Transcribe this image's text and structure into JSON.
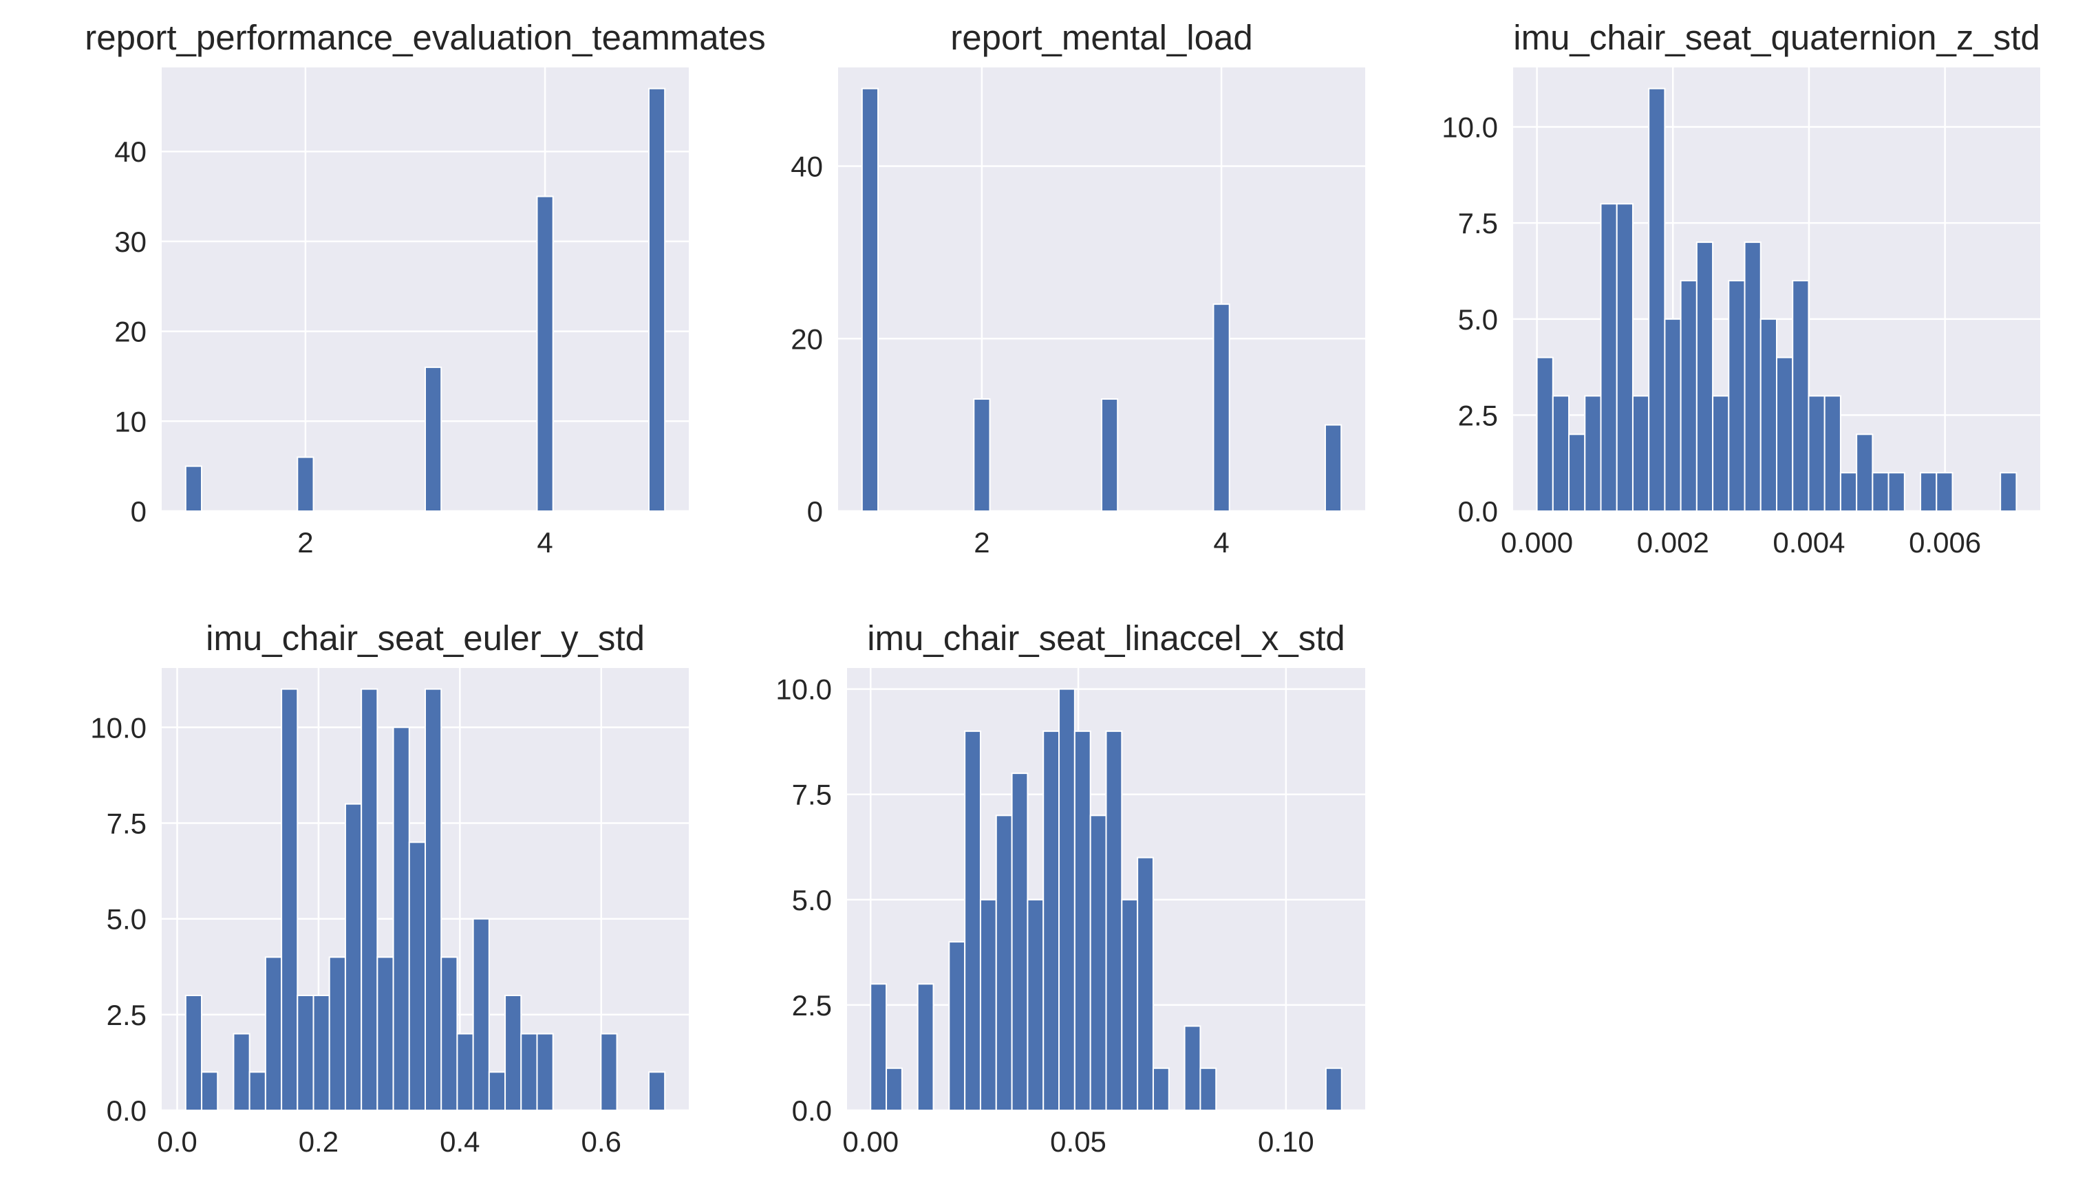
{
  "chart_data": [
    {
      "type": "histogram",
      "title": "report_performance_evaluation_teammates",
      "color": "#4c72b0",
      "grid": true,
      "bins": [
        1,
        1.1333,
        1.2667,
        1.4,
        1.5333,
        1.6667,
        1.8,
        1.9333,
        2.0667,
        2.2,
        2.3333,
        2.4667,
        2.6,
        2.7333,
        2.8667,
        3,
        3.1333,
        3.2667,
        3.4,
        3.5333,
        3.6667,
        3.8,
        3.9333,
        4.0667,
        4.2,
        4.3333,
        4.4667,
        4.6,
        4.7333,
        4.8667,
        5
      ],
      "values": [
        5,
        0,
        0,
        0,
        0,
        0,
        0,
        6,
        0,
        0,
        0,
        0,
        0,
        0,
        0,
        16,
        0,
        0,
        0,
        0,
        0,
        0,
        35,
        0,
        0,
        0,
        0,
        0,
        0,
        47
      ],
      "xlim": [
        0.8,
        5.2
      ],
      "xticks": [
        2,
        4
      ],
      "ylim": [
        0,
        49.35
      ],
      "yticks": [
        0,
        10,
        20,
        30,
        40
      ]
    },
    {
      "type": "histogram",
      "title": "report_mental_load",
      "color": "#4c72b0",
      "grid": true,
      "bins": [
        1,
        1.1333,
        1.2667,
        1.4,
        1.5333,
        1.6667,
        1.8,
        1.9333,
        2.0667,
        2.2,
        2.3333,
        2.4667,
        2.6,
        2.7333,
        2.8667,
        3,
        3.1333,
        3.2667,
        3.4,
        3.5333,
        3.6667,
        3.8,
        3.9333,
        4.0667,
        4.2,
        4.3333,
        4.4667,
        4.6,
        4.7333,
        4.8667,
        5
      ],
      "values": [
        49,
        0,
        0,
        0,
        0,
        0,
        0,
        13,
        0,
        0,
        0,
        0,
        0,
        0,
        0,
        13,
        0,
        0,
        0,
        0,
        0,
        0,
        24,
        0,
        0,
        0,
        0,
        0,
        0,
        10
      ],
      "xlim": [
        0.8,
        5.2
      ],
      "xticks": [
        2,
        4
      ],
      "ylim": [
        0,
        51.45
      ],
      "yticks": [
        0,
        20,
        40
      ]
    },
    {
      "type": "histogram",
      "title": "imu_chair_seat_quaternion_z_std",
      "color": "#4c72b0",
      "grid": true,
      "bins": [
        0,
        0.000235,
        0.00047,
        0.000705,
        0.00094,
        0.001175,
        0.00141,
        0.001645,
        0.00188,
        0.002115,
        0.00235,
        0.002585,
        0.00282,
        0.003055,
        0.00329,
        0.003525,
        0.00376,
        0.003995,
        0.00423,
        0.004465,
        0.0047,
        0.004935,
        0.00517,
        0.005405,
        0.00564,
        0.005875,
        0.00611,
        0.006345,
        0.00658,
        0.006815,
        0.00705
      ],
      "values": [
        4,
        3,
        2,
        3,
        8,
        8,
        3,
        11,
        5,
        6,
        7,
        3,
        6,
        7,
        5,
        4,
        6,
        3,
        3,
        1,
        2,
        1,
        1,
        0,
        1,
        1,
        0,
        0,
        0,
        1
      ],
      "xlim": [
        -0.00035,
        0.0074
      ],
      "xticks": [
        {
          "value": 0,
          "label": "0.000"
        },
        {
          "value": 0.002,
          "label": "0.002"
        },
        {
          "value": 0.004,
          "label": "0.004"
        },
        {
          "value": 0.006,
          "label": "0.006"
        }
      ],
      "ylim": [
        0,
        11.55
      ],
      "yticks": [
        {
          "value": 0,
          "label": "0.0"
        },
        2.5,
        {
          "value": 5,
          "label": "5.0"
        },
        7.5,
        {
          "value": 10,
          "label": "10.0"
        }
      ]
    },
    {
      "type": "histogram",
      "title": "imu_chair_seat_euler_y_std",
      "color": "#4c72b0",
      "grid": true,
      "bins": [
        0.012,
        0.0346,
        0.0572,
        0.0798,
        0.1024,
        0.125,
        0.1476,
        0.1702,
        0.1928,
        0.2154,
        0.238,
        0.2606,
        0.2832,
        0.3058,
        0.3284,
        0.351,
        0.3736,
        0.3962,
        0.4188,
        0.4414,
        0.464,
        0.4866,
        0.5092,
        0.5318,
        0.5544,
        0.577,
        0.5996,
        0.6222,
        0.6448,
        0.6674,
        0.69
      ],
      "values": [
        3,
        1,
        0,
        2,
        1,
        4,
        11,
        3,
        3,
        4,
        8,
        11,
        4,
        10,
        7,
        11,
        4,
        2,
        5,
        1,
        3,
        2,
        2,
        0,
        0,
        0,
        2,
        0,
        0,
        1
      ],
      "xlim": [
        -0.0219,
        0.7239
      ],
      "xticks": [
        {
          "value": 0,
          "label": "0.0"
        },
        0.2,
        0.4,
        0.6
      ],
      "ylim": [
        0,
        11.55
      ],
      "yticks": [
        {
          "value": 0,
          "label": "0.0"
        },
        2.5,
        {
          "value": 5,
          "label": "5.0"
        },
        7.5,
        {
          "value": 10,
          "label": "10.0"
        }
      ]
    },
    {
      "type": "histogram",
      "title": "imu_chair_seat_linaccel_x_std",
      "color": "#4c72b0",
      "grid": true,
      "bins": [
        0,
        0.00378,
        0.00756,
        0.01134,
        0.01512,
        0.0189,
        0.02268,
        0.02646,
        0.03024,
        0.03402,
        0.0378,
        0.04158,
        0.04536,
        0.04914,
        0.05292,
        0.0567,
        0.06048,
        0.06426,
        0.06804,
        0.07182,
        0.0756,
        0.07938,
        0.08316,
        0.08694,
        0.09072,
        0.0945,
        0.09828,
        0.10206,
        0.10584,
        0.10962,
        0.1134
      ],
      "values": [
        3,
        1,
        0,
        3,
        0,
        4,
        9,
        5,
        7,
        8,
        5,
        9,
        10,
        9,
        7,
        9,
        5,
        6,
        1,
        0,
        2,
        1,
        0,
        0,
        0,
        0,
        0,
        0,
        0,
        1
      ],
      "xlim": [
        -0.00567,
        0.11907
      ],
      "xticks": [
        {
          "value": 0,
          "label": "0.00"
        },
        0.05,
        {
          "value": 0.1,
          "label": "0.10"
        }
      ],
      "ylim": [
        0,
        10.5
      ],
      "yticks": [
        {
          "value": 0,
          "label": "0.0"
        },
        2.5,
        {
          "value": 5,
          "label": "5.0"
        },
        7.5,
        {
          "value": 10,
          "label": "10.0"
        }
      ]
    }
  ]
}
